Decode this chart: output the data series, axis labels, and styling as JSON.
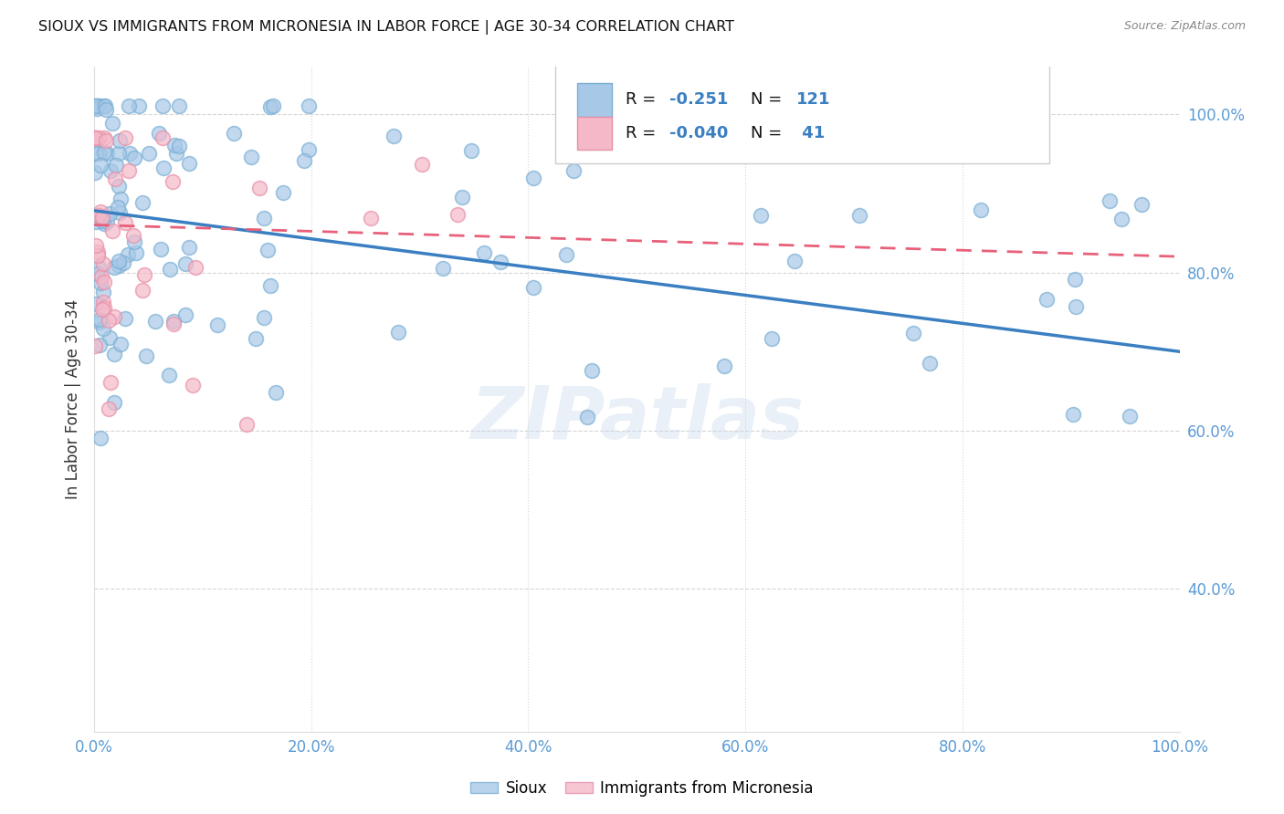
{
  "title": "SIOUX VS IMMIGRANTS FROM MICRONESIA IN LABOR FORCE | AGE 30-34 CORRELATION CHART",
  "source": "Source: ZipAtlas.com",
  "ylabel": "In Labor Force | Age 30-34",
  "xlim": [
    0.0,
    1.0
  ],
  "ylim": [
    0.22,
    1.06
  ],
  "yticks": [
    0.4,
    0.6,
    0.8,
    1.0
  ],
  "xticks": [
    0.0,
    0.2,
    0.4,
    0.6,
    0.8,
    1.0
  ],
  "grid_color": "#cccccc",
  "background_color": "#ffffff",
  "sioux_color": "#a8c8e8",
  "sioux_edge_color": "#7aafd4",
  "micronesia_color": "#f4b8c8",
  "micronesia_edge_color": "#e890a8",
  "sioux_R": -0.251,
  "sioux_N": 121,
  "micronesia_R": -0.04,
  "micronesia_N": 41,
  "sioux_line_color": "#3a7fc1",
  "micronesia_line_color": "#e8607a",
  "sioux_line_start_y": 0.878,
  "sioux_line_end_y": 0.7,
  "micro_line_start_y": 0.86,
  "micro_line_end_y": 0.82,
  "watermark": "ZIPatlas",
  "tick_color": "#5b9bd5",
  "ylabel_color": "#333333",
  "legend_R_color": "#d73027",
  "legend_N_color": "#333333"
}
